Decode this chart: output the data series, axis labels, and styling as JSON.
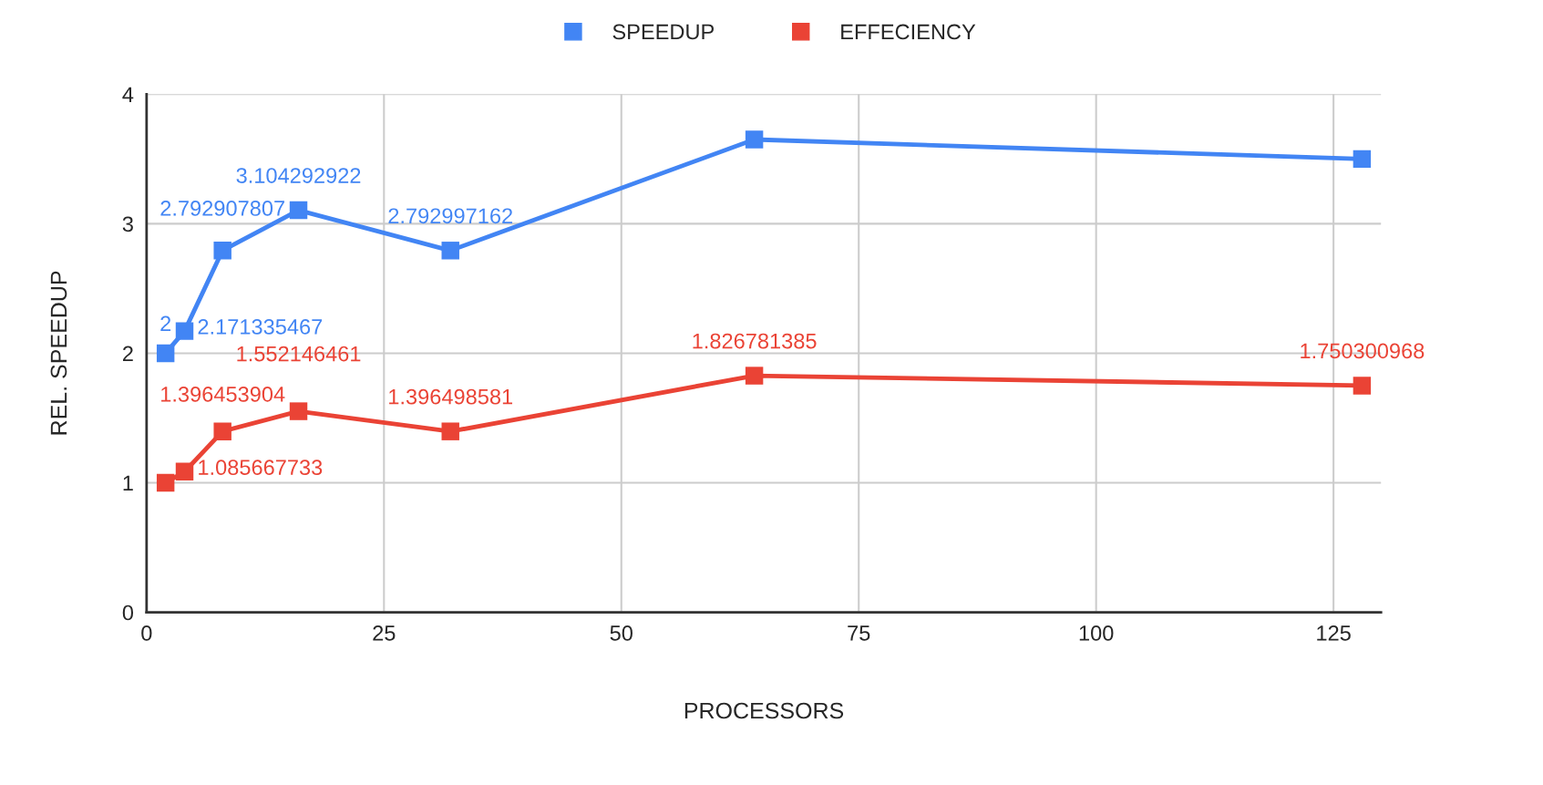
{
  "chart_data": {
    "type": "line",
    "xlabel": "PROCESSORS",
    "ylabel": "REL. SPEEDUP",
    "x": [
      2,
      4,
      8,
      16,
      32,
      64,
      128
    ],
    "series": [
      {
        "name": "SPEEDUP",
        "color": "#4285f4",
        "values": [
          2,
          2.171335467,
          2.792907807,
          3.104292922,
          2.792997162,
          3.65,
          3.5
        ],
        "value_labels": [
          "2",
          "2.171335467",
          "2.792907807",
          "3.104292922",
          "2.792997162",
          null,
          null
        ]
      },
      {
        "name": "EFFECIENCY",
        "color": "#ea4335",
        "values": [
          1,
          1.085667733,
          1.396453904,
          1.552146461,
          1.396498581,
          1.826781385,
          1.750300968
        ],
        "value_labels": [
          null,
          "1.085667733",
          "1.396453904",
          "1.552146461",
          "1.396498581",
          "1.826781385",
          "1.750300968"
        ]
      }
    ],
    "xlim": [
      0,
      130
    ],
    "xticks": [
      0,
      25,
      50,
      75,
      100,
      125
    ],
    "ylim": [
      0,
      4
    ],
    "yticks": [
      0,
      1,
      2,
      3,
      4
    ],
    "grid": true,
    "legend": "top",
    "marker": "square",
    "line_style": "solid"
  }
}
